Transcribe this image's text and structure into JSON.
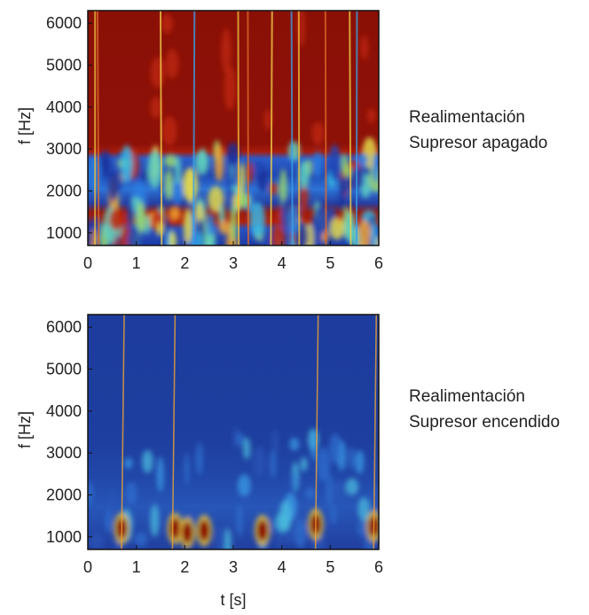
{
  "chart_data": [
    {
      "type": "heatmap",
      "title": "",
      "xlabel": "",
      "ylabel": "f [Hz]",
      "xlim": [
        0,
        6
      ],
      "ylim": [
        700,
        6300
      ],
      "x_ticks": [
        "0",
        "1",
        "2",
        "3",
        "4",
        "5",
        "6"
      ],
      "y_ticks": [
        "1000",
        "2000",
        "3000",
        "4000",
        "5000",
        "6000"
      ],
      "caption": [
        "Realimentación",
        "Supresor apagado"
      ],
      "colors": {
        "background": "#8c1208",
        "low": "#1b3aa6",
        "high": "#8c0000"
      },
      "description_bands": [
        {
          "f_from": 3200,
          "f_to": 6300,
          "level": "high"
        },
        {
          "f_from": 1700,
          "f_to": 3000,
          "level": "mixed"
        },
        {
          "f_from": 700,
          "f_to": 1500,
          "level": "mixed"
        }
      ],
      "vertical_streaks_t": [
        0.15,
        0.2,
        1.5,
        2.2,
        3.1,
        3.3,
        3.8,
        4.2,
        4.35,
        4.9,
        5.4,
        5.55
      ]
    },
    {
      "type": "heatmap",
      "title": "",
      "xlabel": "t [s]",
      "ylabel": "f [Hz]",
      "xlim": [
        0,
        6
      ],
      "ylim": [
        700,
        6300
      ],
      "x_ticks": [
        "0",
        "1",
        "2",
        "3",
        "4",
        "5",
        "6"
      ],
      "y_ticks": [
        "1000",
        "2000",
        "3000",
        "4000",
        "5000",
        "6000"
      ],
      "caption": [
        "Realimentación",
        "Supresor encendido"
      ],
      "colors": {
        "background": "#1c3a9c",
        "low": "#1c3a9c",
        "high": "#8c0000"
      },
      "hot_spots": [
        {
          "t": 0.7,
          "f": 1200
        },
        {
          "t": 1.8,
          "f": 1200
        },
        {
          "t": 2.05,
          "f": 1100
        },
        {
          "t": 2.4,
          "f": 1150
        },
        {
          "t": 3.6,
          "f": 1150
        },
        {
          "t": 4.7,
          "f": 1300
        },
        {
          "t": 5.9,
          "f": 1250
        }
      ],
      "vertical_streaks_t": [
        0.75,
        1.8,
        4.75,
        5.95
      ]
    }
  ]
}
